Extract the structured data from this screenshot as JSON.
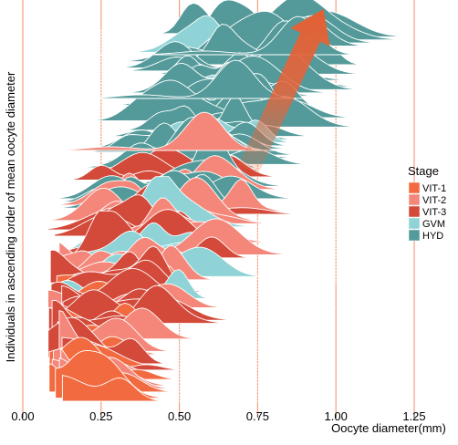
{
  "chart_data": {
    "type": "ridgeline",
    "xlabel": "Oocyte diameter(mm)",
    "ylabel": "Individuals in ascending order of mean oocyte diameter",
    "x_ticks": [
      "0.00",
      "0.25",
      "0.50",
      "0.75",
      "1.00",
      "1.25"
    ],
    "x_tick_values": [
      0,
      0.25,
      0.5,
      0.75,
      1.0,
      1.25
    ],
    "xlim": [
      0,
      1.3
    ],
    "grid": "vertical lines at x ticks",
    "legend": {
      "title": "Stage",
      "placement": "right",
      "entries": [
        "VIT-1",
        "VIT-2",
        "VIT-3",
        "GVM",
        "HYD"
      ]
    },
    "stage_colors": {
      "VIT-1": "#f26a3f",
      "VIT-2": "#f4877a",
      "VIT-3": "#d3493a",
      "GVM": "#8fd3d6",
      "HYD": "#549a9a"
    },
    "annotation": "arrow pointing up and to the right, indicating increasing oocyte diameter",
    "arrow_from": [
      0.72,
      0.6
    ],
    "arrow_to": [
      0.96,
      1.0
    ],
    "individual_count": 120,
    "individual_peaks_mm": {
      "VIT-1": [
        0.18,
        0.45
      ],
      "VIT-2": [
        0.25,
        0.6
      ],
      "VIT-3": [
        0.3,
        0.75
      ],
      "GVM": [
        0.4,
        0.8
      ],
      "HYD": [
        0.6,
        1.0
      ]
    },
    "highlighted_ridges": [
      {
        "stage": "HYD",
        "peak_mm": 0.88
      },
      {
        "stage": "HYD",
        "peak_mm": 0.68
      },
      {
        "stage": "VIT-2",
        "peak_mm": 0.58
      }
    ]
  }
}
